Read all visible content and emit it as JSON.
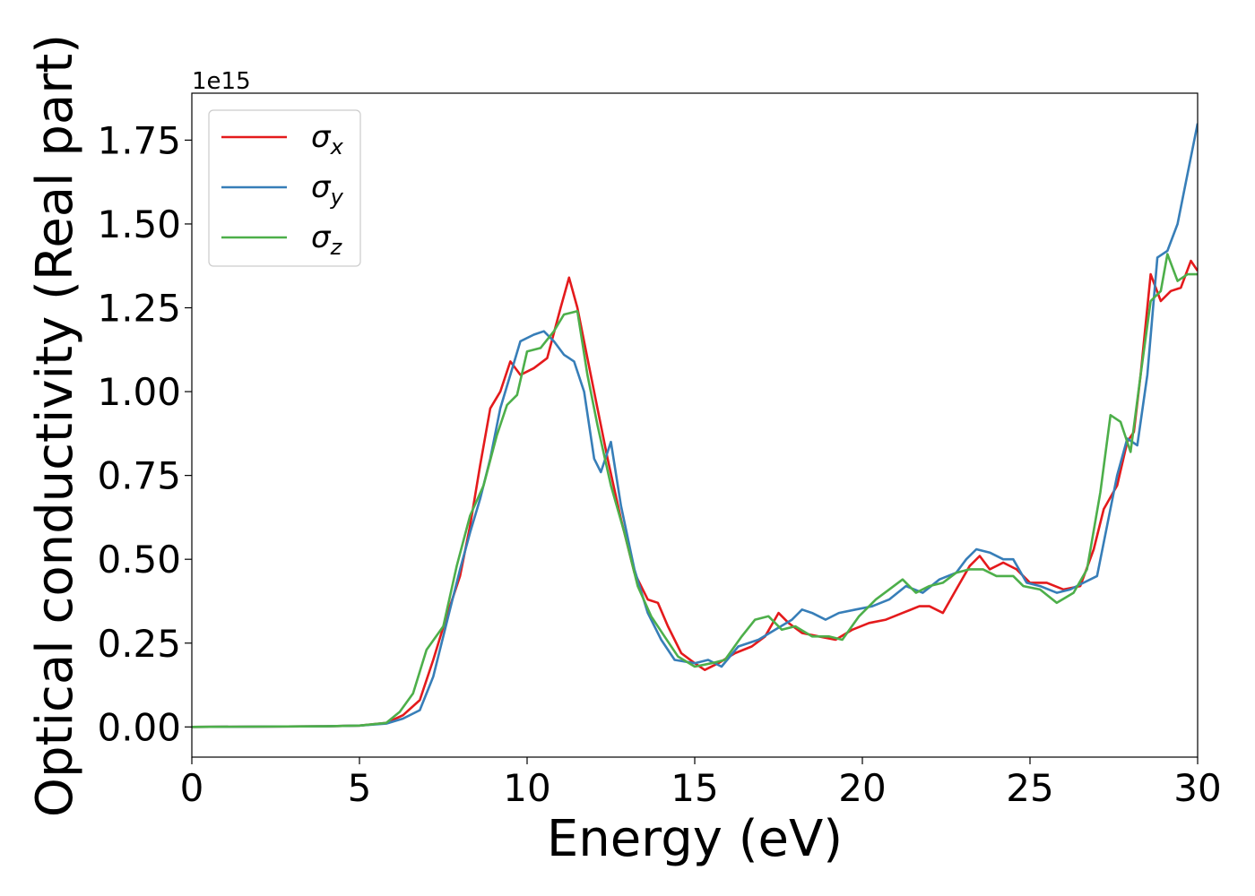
{
  "chart_data": {
    "type": "line",
    "xlabel": "Energy (eV)",
    "ylabel": "Optical conductivity (Real part)",
    "y_scale_label": "1e15",
    "xlim": [
      0,
      30
    ],
    "ylim": [
      -0.09,
      1.89
    ],
    "xticks": [
      "0",
      "5",
      "10",
      "15",
      "20",
      "25",
      "30"
    ],
    "yticks": [
      "0.00",
      "0.25",
      "0.50",
      "0.75",
      "1.00",
      "1.25",
      "1.50",
      "1.75"
    ],
    "grid": false,
    "legend": {
      "placement": "top-left"
    },
    "series": [
      {
        "name": "σx",
        "base": "σ",
        "sub": "x",
        "color": "#e41a1c",
        "points": [
          [
            0,
            0
          ],
          [
            4,
            0.002
          ],
          [
            5,
            0.004
          ],
          [
            5.8,
            0.012
          ],
          [
            6.3,
            0.035
          ],
          [
            6.8,
            0.08
          ],
          [
            7.2,
            0.2
          ],
          [
            7.6,
            0.33
          ],
          [
            8.0,
            0.45
          ],
          [
            8.3,
            0.6
          ],
          [
            8.6,
            0.78
          ],
          [
            8.9,
            0.95
          ],
          [
            9.2,
            1.0
          ],
          [
            9.5,
            1.09
          ],
          [
            9.8,
            1.05
          ],
          [
            10.2,
            1.07
          ],
          [
            10.6,
            1.1
          ],
          [
            11.0,
            1.25
          ],
          [
            11.25,
            1.34
          ],
          [
            11.5,
            1.25
          ],
          [
            11.8,
            1.1
          ],
          [
            12.1,
            0.95
          ],
          [
            12.4,
            0.8
          ],
          [
            12.8,
            0.62
          ],
          [
            13.2,
            0.46
          ],
          [
            13.6,
            0.38
          ],
          [
            13.9,
            0.37
          ],
          [
            14.2,
            0.3
          ],
          [
            14.6,
            0.22
          ],
          [
            15.0,
            0.19
          ],
          [
            15.3,
            0.17
          ],
          [
            15.7,
            0.19
          ],
          [
            16.2,
            0.22
          ],
          [
            16.7,
            0.24
          ],
          [
            17.1,
            0.27
          ],
          [
            17.5,
            0.34
          ],
          [
            17.8,
            0.31
          ],
          [
            18.2,
            0.28
          ],
          [
            18.7,
            0.27
          ],
          [
            19.2,
            0.26
          ],
          [
            19.7,
            0.29
          ],
          [
            20.2,
            0.31
          ],
          [
            20.7,
            0.32
          ],
          [
            21.2,
            0.34
          ],
          [
            21.7,
            0.36
          ],
          [
            22.0,
            0.36
          ],
          [
            22.4,
            0.34
          ],
          [
            22.8,
            0.41
          ],
          [
            23.2,
            0.48
          ],
          [
            23.5,
            0.51
          ],
          [
            23.8,
            0.47
          ],
          [
            24.2,
            0.49
          ],
          [
            24.6,
            0.47
          ],
          [
            25.0,
            0.43
          ],
          [
            25.5,
            0.43
          ],
          [
            26.0,
            0.41
          ],
          [
            26.5,
            0.42
          ],
          [
            26.9,
            0.53
          ],
          [
            27.2,
            0.65
          ],
          [
            27.6,
            0.72
          ],
          [
            27.9,
            0.85
          ],
          [
            28.1,
            0.88
          ],
          [
            28.3,
            1.05
          ],
          [
            28.6,
            1.35
          ],
          [
            28.9,
            1.27
          ],
          [
            29.2,
            1.3
          ],
          [
            29.5,
            1.31
          ],
          [
            29.8,
            1.39
          ],
          [
            30.0,
            1.36
          ]
        ]
      },
      {
        "name": "σy",
        "base": "σ",
        "sub": "y",
        "color": "#377eb8",
        "points": [
          [
            0,
            0
          ],
          [
            4,
            0.002
          ],
          [
            5,
            0.004
          ],
          [
            5.8,
            0.01
          ],
          [
            6.3,
            0.025
          ],
          [
            6.8,
            0.05
          ],
          [
            7.2,
            0.15
          ],
          [
            7.6,
            0.31
          ],
          [
            8.0,
            0.47
          ],
          [
            8.3,
            0.58
          ],
          [
            8.6,
            0.68
          ],
          [
            8.9,
            0.8
          ],
          [
            9.2,
            0.95
          ],
          [
            9.5,
            1.05
          ],
          [
            9.8,
            1.15
          ],
          [
            10.2,
            1.17
          ],
          [
            10.5,
            1.18
          ],
          [
            10.8,
            1.15
          ],
          [
            11.1,
            1.11
          ],
          [
            11.4,
            1.09
          ],
          [
            11.7,
            1.0
          ],
          [
            12.0,
            0.8
          ],
          [
            12.2,
            0.76
          ],
          [
            12.5,
            0.85
          ],
          [
            12.8,
            0.66
          ],
          [
            13.2,
            0.47
          ],
          [
            13.6,
            0.34
          ],
          [
            14.0,
            0.26
          ],
          [
            14.4,
            0.2
          ],
          [
            15.0,
            0.19
          ],
          [
            15.4,
            0.2
          ],
          [
            15.8,
            0.18
          ],
          [
            16.3,
            0.24
          ],
          [
            16.9,
            0.26
          ],
          [
            17.4,
            0.29
          ],
          [
            17.9,
            0.32
          ],
          [
            18.2,
            0.35
          ],
          [
            18.5,
            0.34
          ],
          [
            18.9,
            0.32
          ],
          [
            19.3,
            0.34
          ],
          [
            19.8,
            0.35
          ],
          [
            20.3,
            0.36
          ],
          [
            20.8,
            0.38
          ],
          [
            21.3,
            0.42
          ],
          [
            21.8,
            0.4
          ],
          [
            22.3,
            0.44
          ],
          [
            22.8,
            0.46
          ],
          [
            23.1,
            0.5
          ],
          [
            23.4,
            0.53
          ],
          [
            23.8,
            0.52
          ],
          [
            24.2,
            0.5
          ],
          [
            24.5,
            0.5
          ],
          [
            24.9,
            0.43
          ],
          [
            25.3,
            0.42
          ],
          [
            25.8,
            0.4
          ],
          [
            26.2,
            0.41
          ],
          [
            26.6,
            0.43
          ],
          [
            27.0,
            0.45
          ],
          [
            27.3,
            0.6
          ],
          [
            27.6,
            0.75
          ],
          [
            27.9,
            0.86
          ],
          [
            28.2,
            0.84
          ],
          [
            28.5,
            1.05
          ],
          [
            28.8,
            1.4
          ],
          [
            29.1,
            1.42
          ],
          [
            29.4,
            1.5
          ],
          [
            29.7,
            1.65
          ],
          [
            30.0,
            1.8
          ]
        ]
      },
      {
        "name": "σz",
        "base": "σ",
        "sub": "z",
        "color": "#4daf4a",
        "points": [
          [
            0,
            0
          ],
          [
            4,
            0.002
          ],
          [
            5,
            0.004
          ],
          [
            5.8,
            0.012
          ],
          [
            6.2,
            0.045
          ],
          [
            6.6,
            0.1
          ],
          [
            7.0,
            0.23
          ],
          [
            7.5,
            0.3
          ],
          [
            7.9,
            0.48
          ],
          [
            8.3,
            0.63
          ],
          [
            8.7,
            0.72
          ],
          [
            9.1,
            0.87
          ],
          [
            9.4,
            0.96
          ],
          [
            9.7,
            0.99
          ],
          [
            10.0,
            1.12
          ],
          [
            10.4,
            1.13
          ],
          [
            10.8,
            1.18
          ],
          [
            11.1,
            1.23
          ],
          [
            11.5,
            1.24
          ],
          [
            11.8,
            1.05
          ],
          [
            12.1,
            0.9
          ],
          [
            12.5,
            0.72
          ],
          [
            12.9,
            0.58
          ],
          [
            13.3,
            0.42
          ],
          [
            13.7,
            0.33
          ],
          [
            14.1,
            0.27
          ],
          [
            14.5,
            0.21
          ],
          [
            15.0,
            0.18
          ],
          [
            15.5,
            0.19
          ],
          [
            15.9,
            0.2
          ],
          [
            16.4,
            0.27
          ],
          [
            16.8,
            0.32
          ],
          [
            17.2,
            0.33
          ],
          [
            17.6,
            0.29
          ],
          [
            18.0,
            0.3
          ],
          [
            18.5,
            0.27
          ],
          [
            19.0,
            0.27
          ],
          [
            19.4,
            0.26
          ],
          [
            19.9,
            0.33
          ],
          [
            20.4,
            0.38
          ],
          [
            20.8,
            0.41
          ],
          [
            21.2,
            0.44
          ],
          [
            21.6,
            0.4
          ],
          [
            22.0,
            0.42
          ],
          [
            22.4,
            0.43
          ],
          [
            22.8,
            0.46
          ],
          [
            23.2,
            0.47
          ],
          [
            23.6,
            0.47
          ],
          [
            24.0,
            0.45
          ],
          [
            24.5,
            0.45
          ],
          [
            24.8,
            0.42
          ],
          [
            25.3,
            0.41
          ],
          [
            25.8,
            0.37
          ],
          [
            26.3,
            0.4
          ],
          [
            26.7,
            0.47
          ],
          [
            27.1,
            0.7
          ],
          [
            27.4,
            0.93
          ],
          [
            27.7,
            0.91
          ],
          [
            28.0,
            0.82
          ],
          [
            28.3,
            1.05
          ],
          [
            28.6,
            1.27
          ],
          [
            28.9,
            1.3
          ],
          [
            29.1,
            1.41
          ],
          [
            29.4,
            1.33
          ],
          [
            29.7,
            1.35
          ],
          [
            30.0,
            1.35
          ]
        ]
      }
    ]
  }
}
